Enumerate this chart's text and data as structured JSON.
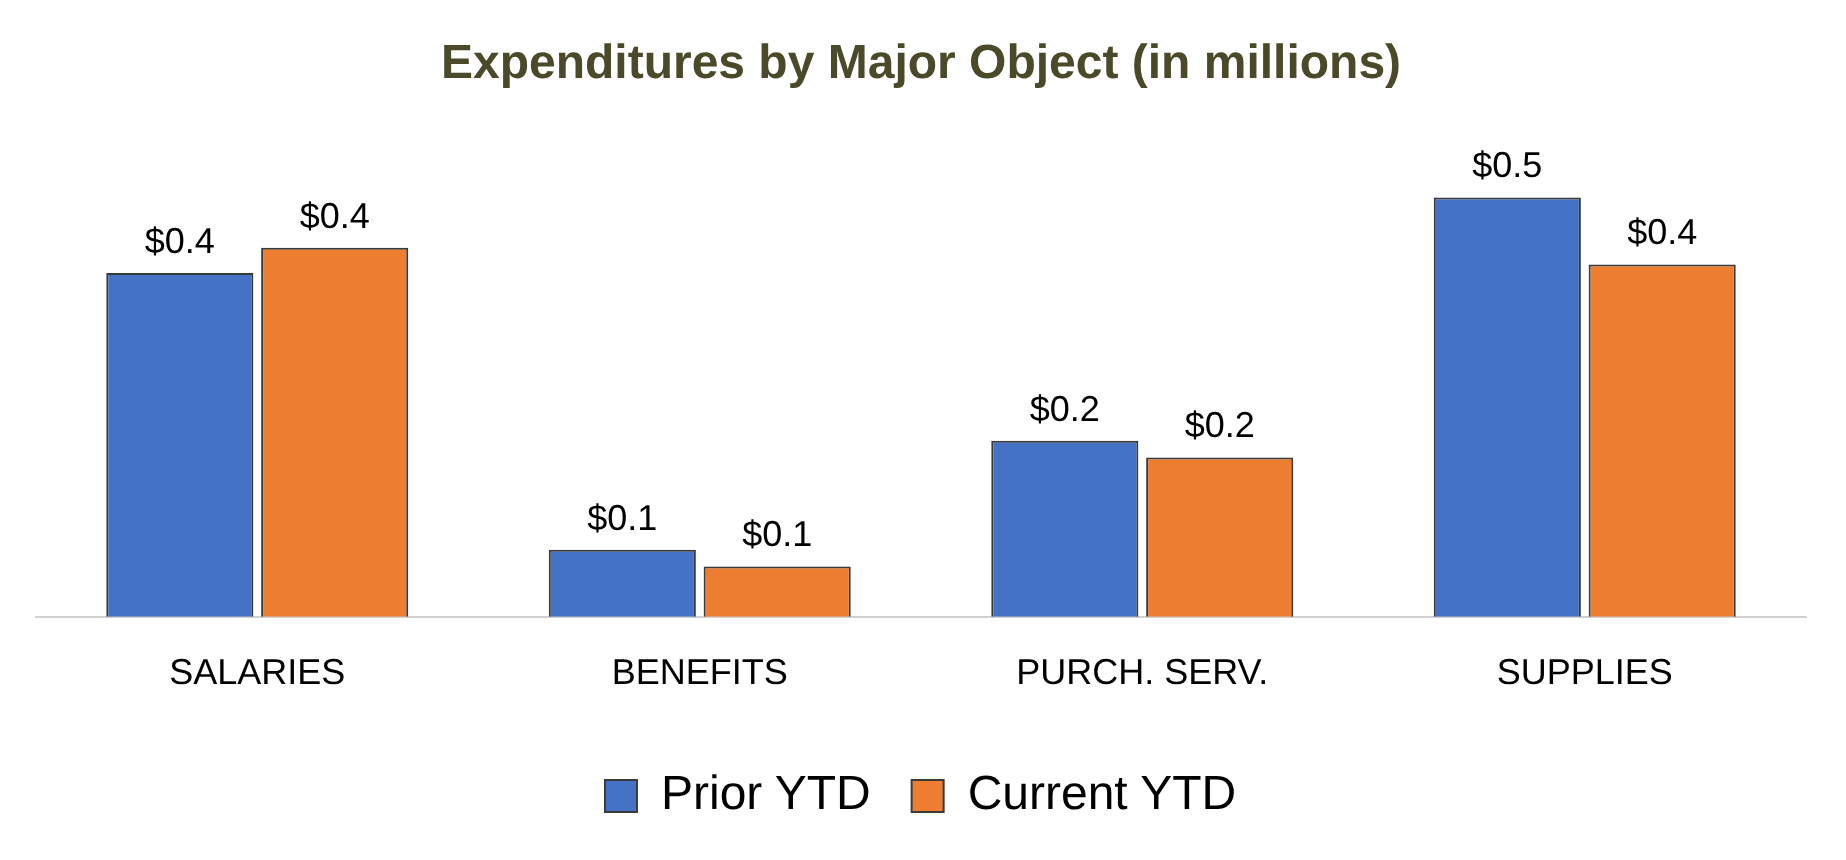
{
  "chart_data": {
    "type": "bar",
    "title": "Expenditures by Major Object (in millions)",
    "categories": [
      "SALARIES",
      "BENEFITS",
      "PURCH. SERV.",
      "SUPPLIES"
    ],
    "series": [
      {
        "name": "Prior YTD",
        "color": "#4472c4",
        "values": [
          0.41,
          0.08,
          0.21,
          0.5
        ],
        "value_labels": [
          "$0.4",
          "$0.1",
          "$0.2",
          "$0.5"
        ]
      },
      {
        "name": "Current YTD",
        "color": "#ed7d31",
        "values": [
          0.44,
          0.06,
          0.19,
          0.42
        ],
        "value_labels": [
          "$0.4",
          "$0.1",
          "$0.2",
          "$0.4"
        ]
      }
    ],
    "legend": "bottom",
    "grid": false
  }
}
